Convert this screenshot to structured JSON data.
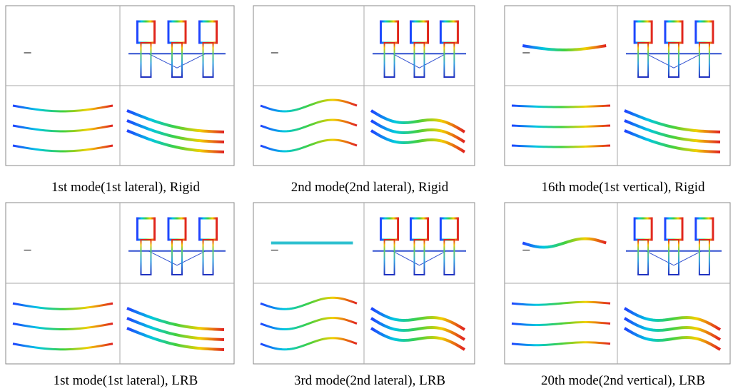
{
  "panels": [
    {
      "caption": "1st mode(1st lateral), Rigid"
    },
    {
      "caption": "2nd mode(2nd lateral), Rigid"
    },
    {
      "caption": "16th mode(1st vertical), Rigid"
    },
    {
      "caption": "1st mode(1st lateral), LRB"
    },
    {
      "caption": "3rd mode(2nd lateral), LRB"
    },
    {
      "caption": "20th mode(2nd vertical), LRB"
    }
  ]
}
